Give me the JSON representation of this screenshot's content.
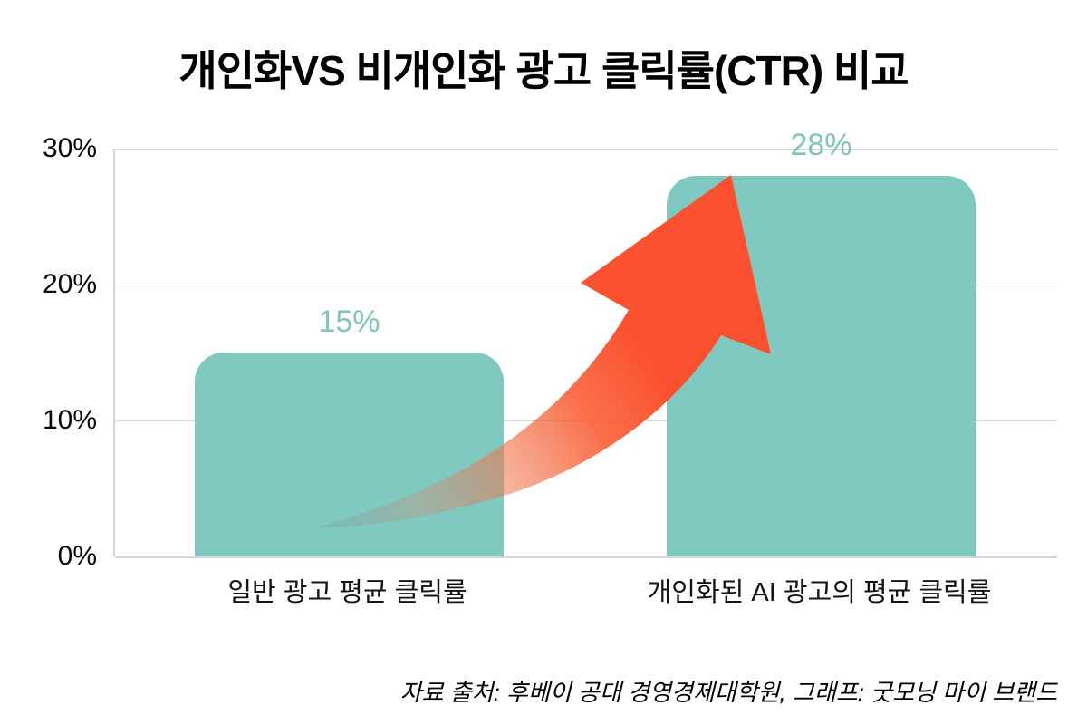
{
  "title": "개인화VS 비개인화 광고 클릭률(CTR) 비교",
  "source_caption": "자료 출처: 후베이 공대 경영경제대학원, 그래프: 굿모닝 마이 브랜드",
  "colors": {
    "bar": "#80c9c1",
    "value_label": "#7fc5bd",
    "arrow": "#fb512e",
    "gridline": "#d6d6d6",
    "text": "#0b0b0b"
  },
  "chart_data": {
    "type": "bar",
    "title": "개인화VS 비개인화 광고 클릭률(CTR) 비교",
    "categories": [
      "일반 광고 평균 클릭률",
      "개인화된 AI 광고의 평균 클릭률"
    ],
    "values": [
      15,
      28
    ],
    "value_labels": [
      "15%",
      "28%"
    ],
    "xlabel": "",
    "ylabel": "",
    "ylim": [
      0,
      30
    ],
    "yticks": [
      {
        "value": 0,
        "label": "0%"
      },
      {
        "value": 10,
        "label": "10%"
      },
      {
        "value": 20,
        "label": "20%"
      },
      {
        "value": 30,
        "label": "30%"
      }
    ],
    "grid": true,
    "legend": false,
    "annotations": [
      "curved growth arrow from first bar up to second bar"
    ]
  }
}
